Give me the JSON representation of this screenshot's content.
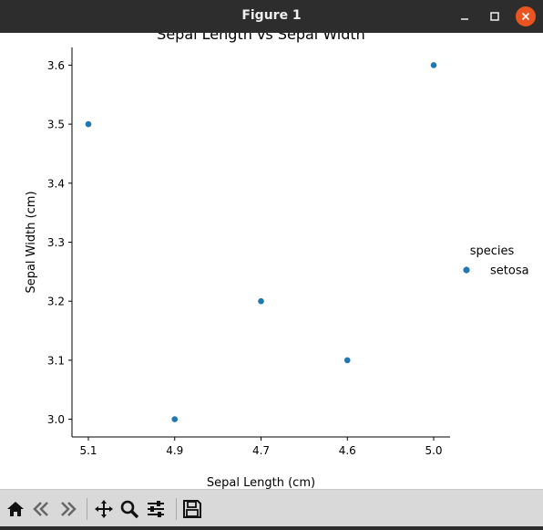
{
  "window": {
    "title": "Figure 1"
  },
  "toolbar": {
    "buttons": [
      {
        "name": "home-icon"
      },
      {
        "name": "back-icon"
      },
      {
        "name": "forward-icon"
      },
      {
        "name": "pan-icon"
      },
      {
        "name": "zoom-icon"
      },
      {
        "name": "configure-subplots-icon"
      },
      {
        "name": "save-icon"
      }
    ]
  },
  "chart_data": {
    "type": "scatter",
    "title": "Sepal Length vs Sepal Width",
    "xlabel": "Sepal Length (cm)",
    "ylabel": "Sepal Width (cm)",
    "x_scale": "categorical",
    "x_categories": [
      "5.1",
      "4.9",
      "4.7",
      "4.6",
      "5.0"
    ],
    "ylim": [
      2.97,
      3.63
    ],
    "yticks": [
      "3.0",
      "3.1",
      "3.2",
      "3.3",
      "3.4",
      "3.5",
      "3.6"
    ],
    "grid": false,
    "legend": {
      "title": "species",
      "position": "right"
    },
    "series": [
      {
        "name": "setosa",
        "color": "#1f77b4",
        "points": [
          {
            "x": "5.1",
            "y": 3.5
          },
          {
            "x": "4.9",
            "y": 3.0
          },
          {
            "x": "4.7",
            "y": 3.2
          },
          {
            "x": "4.6",
            "y": 3.1
          },
          {
            "x": "5.0",
            "y": 3.6
          }
        ]
      }
    ]
  }
}
